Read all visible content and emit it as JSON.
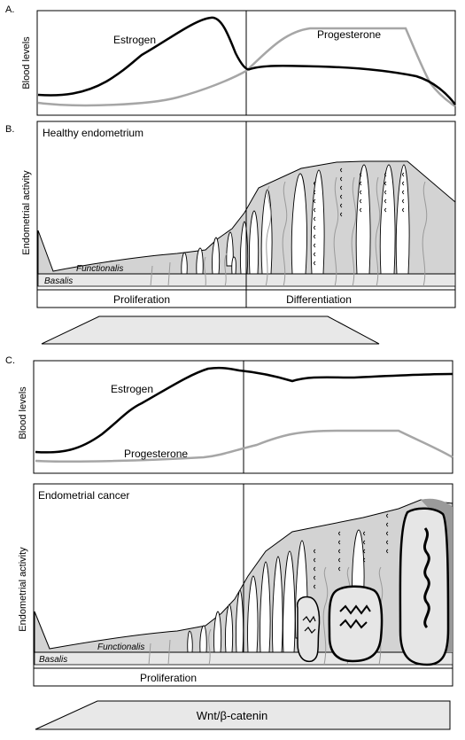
{
  "panel_a": {
    "letter": "A.",
    "ylabel": "Blood levels",
    "estrogen_label": "Estrogen",
    "progesterone_label": "Progesterone"
  },
  "panel_b": {
    "letter": "B.",
    "title": "Healthy endometrium",
    "ylabel": "Endometrial activity",
    "functionalis_label": "Functionalis",
    "basalis_label": "Basalis",
    "phase_left": "Proliferation",
    "phase_right": "Differentiation"
  },
  "panel_c": {
    "letter": "C.",
    "ylabel_top": "Blood levels",
    "estrogen_label": "Estrogen",
    "progesterone_label": "Progesterone",
    "title": "Endometrial cancer",
    "ylabel_bottom": "Endometrial activity",
    "functionalis_label": "Functionalis",
    "basalis_label": "Basalis",
    "phase_label": "Proliferation",
    "wnt_label": "Wnt/β-catenin"
  },
  "colors": {
    "estrogen": "#000000",
    "progesterone": "#a6a6a6",
    "tissue_fill": "#d3d3d3",
    "basalis_fill": "#e8e8e8",
    "tumor_fill": "#e6e6e6"
  }
}
